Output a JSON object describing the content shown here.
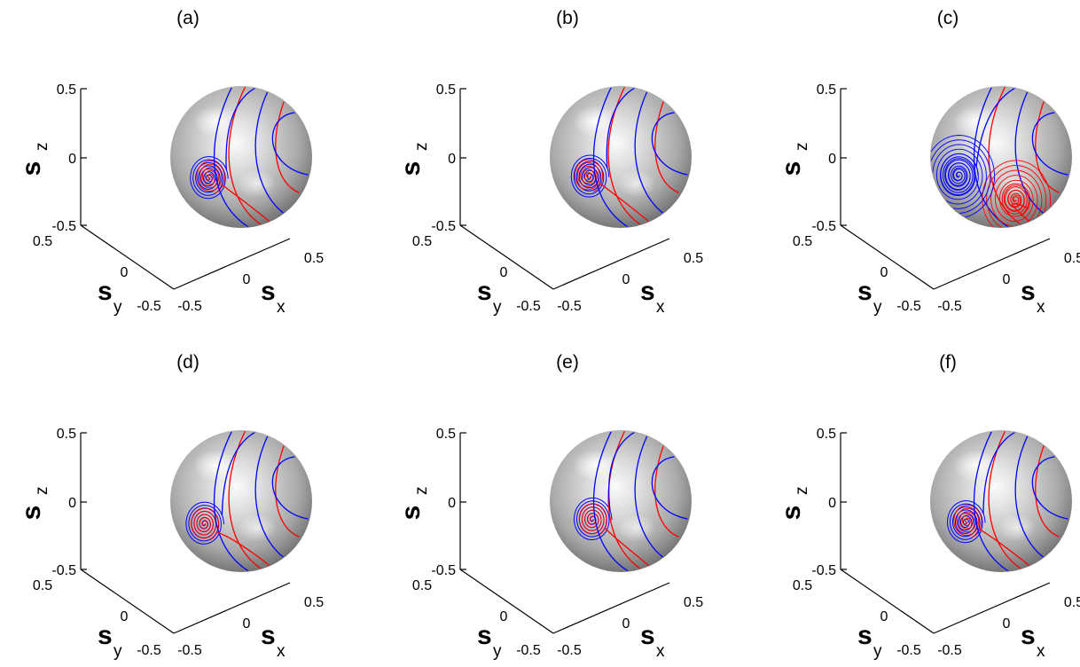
{
  "chart_data": [
    {
      "type": "scatter",
      "panel_label": "(a)",
      "xlabel": "s",
      "xlabel_sub": "x",
      "ylabel": "s",
      "ylabel_sub": "y",
      "zlabel": "s",
      "zlabel_sub": "z",
      "x_ticks": [
        "-0.5",
        "0",
        "0.5"
      ],
      "y_ticks": [
        "-0.5",
        "0",
        "0.5"
      ],
      "z_ticks": [
        "-0.5",
        "0",
        "0.5"
      ],
      "xlim": [
        -0.5,
        0.5
      ],
      "ylim": [
        -0.5,
        0.5
      ],
      "zlim": [
        -0.5,
        0.5
      ],
      "surface": "sphere",
      "series_colors": [
        "#0000ff",
        "#ff0000"
      ],
      "focus_blue": [
        -0.23,
        -0.15
      ],
      "focus_red": [
        -0.22,
        -0.14
      ]
    },
    {
      "type": "scatter",
      "panel_label": "(b)",
      "xlabel": "s",
      "xlabel_sub": "x",
      "ylabel": "s",
      "ylabel_sub": "y",
      "zlabel": "s",
      "zlabel_sub": "z",
      "x_ticks": [
        "-0.5",
        "0",
        "0.5"
      ],
      "y_ticks": [
        "-0.5",
        "0",
        "0.5"
      ],
      "z_ticks": [
        "-0.5",
        "0",
        "0.5"
      ],
      "xlim": [
        -0.5,
        0.5
      ],
      "ylim": [
        -0.5,
        0.5
      ],
      "zlim": [
        -0.5,
        0.5
      ],
      "surface": "sphere",
      "series_colors": [
        "#0000ff",
        "#ff0000"
      ],
      "focus_blue": [
        -0.22,
        -0.14
      ],
      "focus_red": [
        -0.23,
        -0.13
      ]
    },
    {
      "type": "scatter",
      "panel_label": "(c)",
      "xlabel": "s",
      "xlabel_sub": "x",
      "ylabel": "s",
      "ylabel_sub": "y",
      "zlabel": "s",
      "zlabel_sub": "z",
      "x_ticks": [
        "-0.5",
        "0",
        "0.5"
      ],
      "y_ticks": [
        "-0.5",
        "0",
        "0.5"
      ],
      "z_ticks": [
        "-0.5",
        "0",
        "0.5"
      ],
      "xlim": [
        -0.5,
        0.5
      ],
      "ylim": [
        -0.5,
        0.5
      ],
      "zlim": [
        -0.5,
        0.5
      ],
      "surface": "sphere",
      "series_colors": [
        "#0000ff",
        "#ff0000"
      ],
      "focus_blue": [
        -0.3,
        -0.13
      ],
      "focus_red": [
        0.1,
        -0.3
      ]
    },
    {
      "type": "scatter",
      "panel_label": "(d)",
      "xlabel": "s",
      "xlabel_sub": "x",
      "ylabel": "s",
      "ylabel_sub": "y",
      "zlabel": "s",
      "zlabel_sub": "z",
      "x_ticks": [
        "-0.5",
        "0",
        "0.5"
      ],
      "y_ticks": [
        "-0.5",
        "0",
        "0.5"
      ],
      "z_ticks": [
        "-0.5",
        "0",
        "0.5"
      ],
      "xlim": [
        -0.5,
        0.5
      ],
      "ylim": [
        -0.5,
        0.5
      ],
      "zlim": [
        -0.5,
        0.5
      ],
      "surface": "sphere",
      "series_colors": [
        "#0000ff",
        "#ff0000"
      ],
      "focus_blue": [
        -0.26,
        -0.16
      ],
      "focus_red": [
        -0.26,
        -0.16
      ]
    },
    {
      "type": "scatter",
      "panel_label": "(e)",
      "xlabel": "s",
      "xlabel_sub": "x",
      "ylabel": "s",
      "ylabel_sub": "y",
      "zlabel": "s",
      "zlabel_sub": "z",
      "x_ticks": [
        "-0.5",
        "0",
        "0.5"
      ],
      "y_ticks": [
        "-0.5",
        "0",
        "0.5"
      ],
      "z_ticks": [
        "-0.5",
        "0",
        "0.5"
      ],
      "xlim": [
        -0.5,
        0.5
      ],
      "ylim": [
        -0.5,
        0.5
      ],
      "zlim": [
        -0.5,
        0.5
      ],
      "surface": "sphere",
      "series_colors": [
        "#0000ff",
        "#ff0000"
      ],
      "focus_blue": [
        -0.2,
        -0.13
      ],
      "focus_red": [
        -0.2,
        -0.13
      ]
    },
    {
      "type": "scatter",
      "panel_label": "(f)",
      "xlabel": "s",
      "xlabel_sub": "x",
      "ylabel": "s",
      "ylabel_sub": "y",
      "zlabel": "s",
      "zlabel_sub": "z",
      "x_ticks": [
        "-0.5",
        "0",
        "0.5"
      ],
      "y_ticks": [
        "-0.5",
        "0",
        "0.5"
      ],
      "z_ticks": [
        "-0.5",
        "0",
        "0.5"
      ],
      "xlim": [
        -0.5,
        0.5
      ],
      "ylim": [
        -0.5,
        0.5
      ],
      "zlim": [
        -0.5,
        0.5
      ],
      "surface": "sphere",
      "series_colors": [
        "#0000ff",
        "#ff0000"
      ],
      "focus_blue": [
        -0.25,
        -0.15
      ],
      "focus_red": [
        -0.24,
        -0.14
      ]
    }
  ]
}
